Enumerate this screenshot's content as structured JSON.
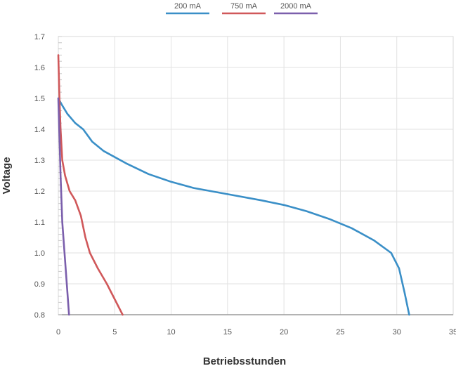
{
  "chart_data": {
    "type": "line",
    "xlabel": "Betriebsstunden",
    "ylabel": "Voltage",
    "xlim": [
      0,
      35
    ],
    "ylim": [
      0.8,
      1.7
    ],
    "x_ticks": [
      "0",
      "5",
      "10",
      "15",
      "20",
      "25",
      "30",
      "35"
    ],
    "y_ticks": [
      "0.8",
      "0.9",
      "1.0",
      "1.1",
      "1.2",
      "1.3",
      "1.4",
      "1.5",
      "1.6",
      "1.7"
    ],
    "grid": true,
    "legend_position": "top-center",
    "series": [
      {
        "name": "200 mA",
        "color": "#3a8fc7",
        "points": [
          [
            0,
            1.5
          ],
          [
            0.3,
            1.48
          ],
          [
            0.8,
            1.45
          ],
          [
            1.5,
            1.42
          ],
          [
            2.2,
            1.4
          ],
          [
            3.0,
            1.36
          ],
          [
            4.0,
            1.33
          ],
          [
            6.0,
            1.29
          ],
          [
            8.0,
            1.255
          ],
          [
            10.0,
            1.23
          ],
          [
            12.0,
            1.21
          ],
          [
            15.0,
            1.19
          ],
          [
            18.0,
            1.17
          ],
          [
            20.0,
            1.155
          ],
          [
            22.0,
            1.135
          ],
          [
            24.0,
            1.11
          ],
          [
            26.0,
            1.08
          ],
          [
            28.0,
            1.04
          ],
          [
            29.5,
            1.0
          ],
          [
            30.2,
            0.95
          ],
          [
            30.7,
            0.87
          ],
          [
            31.1,
            0.8
          ]
        ]
      },
      {
        "name": "750 mA",
        "color": "#d0585a",
        "points": [
          [
            0,
            1.64
          ],
          [
            0.1,
            1.5
          ],
          [
            0.2,
            1.4
          ],
          [
            0.35,
            1.3
          ],
          [
            0.6,
            1.25
          ],
          [
            1.0,
            1.2
          ],
          [
            1.5,
            1.17
          ],
          [
            2.0,
            1.12
          ],
          [
            2.4,
            1.05
          ],
          [
            2.8,
            1.0
          ],
          [
            3.5,
            0.95
          ],
          [
            4.3,
            0.9
          ],
          [
            5.0,
            0.85
          ],
          [
            5.7,
            0.8
          ]
        ]
      },
      {
        "name": "2000 mA",
        "color": "#7b5fac",
        "points": [
          [
            0,
            1.5
          ],
          [
            0.08,
            1.4
          ],
          [
            0.2,
            1.25
          ],
          [
            0.35,
            1.1
          ],
          [
            0.55,
            1.0
          ],
          [
            0.75,
            0.9
          ],
          [
            0.95,
            0.8
          ]
        ]
      }
    ]
  }
}
